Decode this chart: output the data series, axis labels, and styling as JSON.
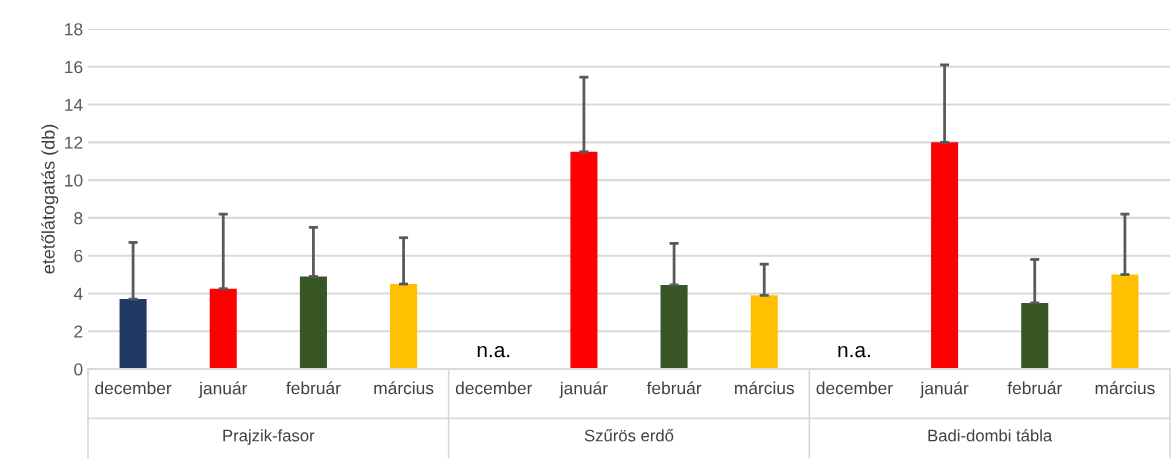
{
  "chart_data": {
    "type": "bar",
    "ylabel": "etetőlátogatás (db)",
    "categories": [
      "december",
      "január",
      "február",
      "március",
      "december",
      "január",
      "február",
      "március",
      "december",
      "január",
      "február",
      "március"
    ],
    "values": [
      3.7,
      4.25,
      4.9,
      4.5,
      null,
      11.5,
      4.45,
      3.9,
      null,
      12.0,
      3.5,
      5.0
    ],
    "errors": [
      [
        3.7,
        6.7
      ],
      [
        4.25,
        8.2
      ],
      [
        4.9,
        7.5
      ],
      [
        4.5,
        6.95
      ],
      null,
      [
        11.5,
        15.45
      ],
      [
        4.45,
        6.65
      ],
      [
        3.9,
        5.55
      ],
      null,
      [
        12.0,
        16.1
      ],
      [
        3.5,
        5.8
      ],
      [
        5.0,
        8.2
      ]
    ],
    "value_labels": [
      null,
      null,
      null,
      null,
      "n.a.",
      null,
      null,
      null,
      "n.a.",
      null,
      null,
      null
    ],
    "colors": [
      "#1f3864",
      "#ff0000",
      "#375623",
      "#ffc000",
      "#1f3864",
      "#ff0000",
      "#375623",
      "#ffc000",
      "#1f3864",
      "#ff0000",
      "#375623",
      "#ffc000"
    ],
    "annotations": [
      "Prajzik-fasor",
      "Szűrös erdő",
      "Badi-dombi tábla"
    ],
    "ylim": [
      0,
      18
    ],
    "yticks": [
      0,
      2,
      4,
      6,
      8,
      10,
      12,
      14,
      16,
      18
    ],
    "grid": "y"
  }
}
